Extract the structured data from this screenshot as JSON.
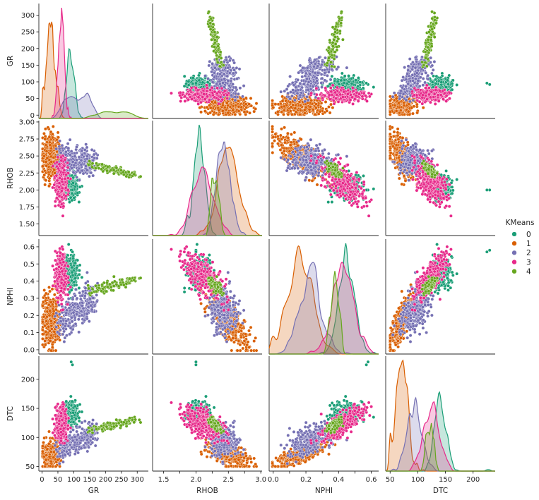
{
  "chart_data": {
    "type": "scatter",
    "kind": "pairplot",
    "variables": [
      "GR",
      "RHOB",
      "NPHI",
      "DTC"
    ],
    "diagonal": "kde",
    "hue": "KMeans",
    "legend": {
      "title": "KMeans",
      "placement": "right",
      "entries": [
        "0",
        "1",
        "2",
        "3",
        "4"
      ]
    },
    "colors": [
      "#1b9e77",
      "#d95f02",
      "#7570b3",
      "#e7298a",
      "#66a61e"
    ],
    "axes": {
      "GR": {
        "lim": [
          -10,
          335
        ],
        "ticks": [
          0,
          50,
          100,
          150,
          200,
          250,
          300
        ],
        "ticklabels": [
          "0",
          "50",
          "100",
          "150",
          "200",
          "250",
          "300"
        ]
      },
      "RHOB": {
        "lim": [
          1.33,
          3.02
        ],
        "ticks": [
          1.5,
          1.75,
          2.0,
          2.25,
          2.5,
          2.75,
          3.0
        ],
        "ticklabels_y": [
          "1.50",
          "1.75",
          "2.00",
          "2.25",
          "2.50",
          "2.75",
          "3.00"
        ],
        "ticklabels_x": [
          "1.5",
          "",
          "2.0",
          "",
          "2.5",
          "",
          "3.0"
        ]
      },
      "NPHI": {
        "lim": [
          -0.025,
          0.645
        ],
        "ticks": [
          0.0,
          0.1,
          0.2,
          0.3,
          0.4,
          0.5,
          0.6
        ],
        "ticklabels_y": [
          "0.0",
          "0.1",
          "0.2",
          "0.3",
          "0.4",
          "0.5",
          "0.6"
        ],
        "ticklabels_x": [
          "0.0",
          "",
          "0.2",
          "",
          "0.4",
          "",
          "0.6"
        ]
      },
      "DTC": {
        "lim": [
          42,
          240
        ],
        "ticks": [
          50,
          100,
          150,
          200
        ],
        "ticklabels": [
          "50",
          "100",
          "150",
          "200"
        ]
      }
    },
    "clusters": [
      {
        "name": "0",
        "GR": [
          85,
          9
        ],
        "RHOB": [
          2.05,
          0.1
        ],
        "NPHI": [
          0.45,
          0.045
        ],
        "DTC": [
          145,
          8
        ]
      },
      {
        "name": "1",
        "GR": [
          25,
          9
        ],
        "RHOB": [
          2.52,
          0.12
        ],
        "NPHI": [
          0.17,
          0.06
        ],
        "DTC": [
          70,
          8
        ]
      },
      {
        "name": "2",
        "GR": [
          70,
          22
        ],
        "RHOB": [
          2.45,
          0.14
        ],
        "NPHI": [
          0.2,
          0.08
        ],
        "DTC": [
          85,
          12
        ]
      },
      {
        "name": "3",
        "GR": [
          55,
          12
        ],
        "RHOB": [
          2.15,
          0.15
        ],
        "NPHI": [
          0.42,
          0.07
        ],
        "DTC": [
          125,
          14
        ]
      },
      {
        "name": "4",
        "GR": [
          200,
          35
        ],
        "RHOB": [
          2.3,
          0.05
        ],
        "NPHI": [
          0.38,
          0.03
        ],
        "DTC": [
          120,
          6
        ]
      }
    ]
  }
}
